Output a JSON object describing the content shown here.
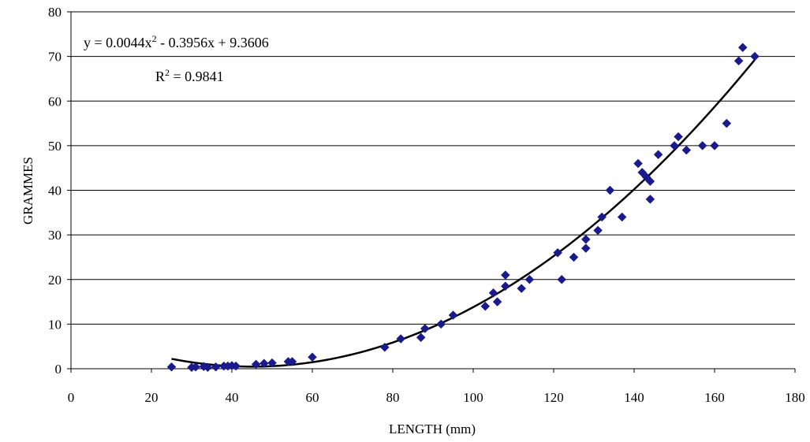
{
  "chart_data": {
    "type": "scatter",
    "xlabel": "LENGTH (mm)",
    "ylabel": "GRAMMES",
    "xlim": [
      0,
      180
    ],
    "ylim": [
      0,
      80
    ],
    "x_ticks": [
      0,
      20,
      40,
      60,
      80,
      100,
      120,
      140,
      160,
      180
    ],
    "y_ticks": [
      0,
      10,
      20,
      30,
      40,
      50,
      60,
      70,
      80
    ],
    "grid": "horizontal",
    "marker_color": "#1a1a8c",
    "trendline": {
      "type": "polynomial",
      "order": 2,
      "coefficients": [
        0.0044,
        -0.3956,
        9.3606
      ],
      "x_range": [
        25,
        170
      ],
      "equation_main": "y = 0.0044x",
      "equation_exp": "2",
      "equation_rest": " - 0.3956x + 9.3606",
      "r2_main": "R",
      "r2_exp": "2",
      "r2_rest": " = 0.9841",
      "color": "#000000"
    },
    "series": [
      {
        "points": [
          [
            25,
            0.4
          ],
          [
            30,
            0.3
          ],
          [
            31,
            0.4
          ],
          [
            33,
            0.5
          ],
          [
            34,
            0.3
          ],
          [
            36,
            0.4
          ],
          [
            38,
            0.6
          ],
          [
            39,
            0.6
          ],
          [
            40,
            0.7
          ],
          [
            41,
            0.6
          ],
          [
            46,
            1.0
          ],
          [
            48,
            1.2
          ],
          [
            50,
            1.3
          ],
          [
            54,
            1.6
          ],
          [
            55,
            1.6
          ],
          [
            60,
            2.6
          ],
          [
            78,
            4.8
          ],
          [
            82,
            6.7
          ],
          [
            87,
            7.0
          ],
          [
            88,
            9.0
          ],
          [
            92,
            10.0
          ],
          [
            95,
            12.0
          ],
          [
            103,
            14.0
          ],
          [
            105,
            17.0
          ],
          [
            106,
            15.0
          ],
          [
            108,
            18.5
          ],
          [
            108,
            21.0
          ],
          [
            112,
            18.0
          ],
          [
            114,
            20.0
          ],
          [
            121,
            26.0
          ],
          [
            122,
            20.0
          ],
          [
            125,
            25.0
          ],
          [
            128,
            27.0
          ],
          [
            128,
            29.0
          ],
          [
            131,
            31.0
          ],
          [
            132,
            34.0
          ],
          [
            134,
            40.0
          ],
          [
            137,
            34.0
          ],
          [
            141,
            46.0
          ],
          [
            142,
            44.0
          ],
          [
            143,
            43.0
          ],
          [
            144,
            42.0
          ],
          [
            144,
            38.0
          ],
          [
            146,
            48.0
          ],
          [
            150,
            50.0
          ],
          [
            151,
            52.0
          ],
          [
            153,
            49.0
          ],
          [
            157,
            50.0
          ],
          [
            160,
            50.0
          ],
          [
            163,
            55.0
          ],
          [
            166,
            69.0
          ],
          [
            167,
            72.0
          ],
          [
            170,
            70.0
          ]
        ]
      }
    ]
  }
}
